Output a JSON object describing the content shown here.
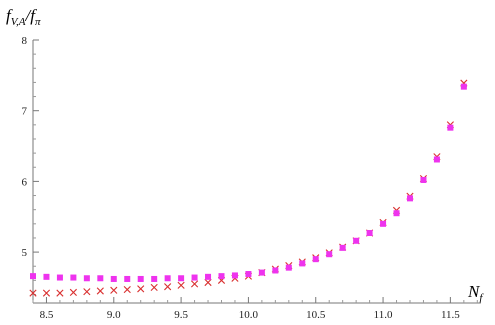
{
  "chart_data": {
    "type": "scatter",
    "ylabel": "f",
    "ylabel_sub": "V,A",
    "ylabel_tail": "/f",
    "ylabel_sub2": "π",
    "xlabel": "N",
    "xlabel_sub": "f",
    "xlim": [
      8.4,
      11.72
    ],
    "ylim": [
      4.28,
      8.0
    ],
    "x_ticks": [
      "8.5",
      "9.0",
      "9.5",
      "10.0",
      "10.5",
      "11.0",
      "11.5"
    ],
    "y_ticks": [
      "5",
      "6",
      "7",
      "8"
    ],
    "grid": false,
    "colors": {
      "cross": "#d93030",
      "square": "#ee33ee"
    },
    "series": [
      {
        "marker": "cross",
        "x": [
          8.4,
          8.5,
          8.6,
          8.7,
          8.8,
          8.9,
          9.0,
          9.1,
          9.2,
          9.3,
          9.4,
          9.5,
          9.6,
          9.7,
          9.8,
          9.9,
          10.0,
          10.1,
          10.2,
          10.3,
          10.4,
          10.5,
          10.6,
          10.7,
          10.8,
          10.9,
          11.0,
          11.1,
          11.2,
          11.3,
          11.4,
          11.5,
          11.6
        ],
        "y": [
          4.42,
          4.42,
          4.42,
          4.43,
          4.44,
          4.45,
          4.46,
          4.47,
          4.48,
          4.5,
          4.51,
          4.53,
          4.55,
          4.57,
          4.6,
          4.63,
          4.66,
          4.71,
          4.76,
          4.81,
          4.86,
          4.92,
          4.99,
          5.07,
          5.16,
          5.27,
          5.42,
          5.59,
          5.79,
          6.04,
          6.35,
          6.8,
          7.39
        ]
      },
      {
        "marker": "square",
        "x": [
          8.4,
          8.5,
          8.6,
          8.7,
          8.8,
          8.9,
          9.0,
          9.1,
          9.2,
          9.3,
          9.4,
          9.5,
          9.6,
          9.7,
          9.8,
          9.9,
          10.0,
          10.1,
          10.2,
          10.3,
          10.4,
          10.5,
          10.6,
          10.7,
          10.8,
          10.9,
          11.0,
          11.1,
          11.2,
          11.3,
          11.4,
          11.5,
          11.6
        ],
        "y": [
          4.66,
          4.65,
          4.64,
          4.64,
          4.63,
          4.63,
          4.62,
          4.62,
          4.62,
          4.62,
          4.63,
          4.63,
          4.64,
          4.65,
          4.66,
          4.67,
          4.69,
          4.71,
          4.74,
          4.78,
          4.84,
          4.9,
          4.97,
          5.06,
          5.16,
          5.27,
          5.4,
          5.55,
          5.76,
          6.02,
          6.31,
          6.76,
          7.34
        ]
      }
    ]
  }
}
